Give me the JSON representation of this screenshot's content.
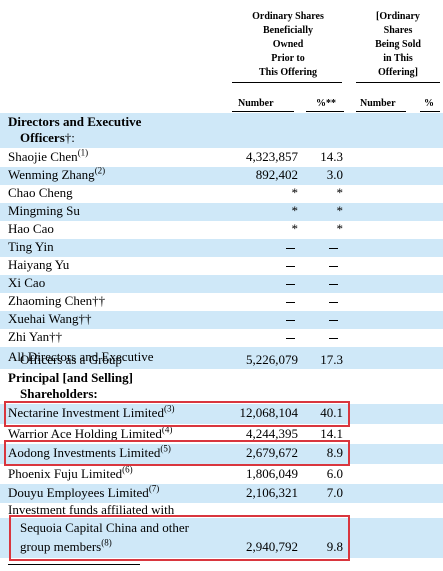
{
  "header": {
    "prior_lines": [
      "Ordinary Shares",
      "Beneficially",
      "Owned",
      "Prior to",
      "This Offering"
    ],
    "sold_lines": [
      "[Ordinary",
      "Shares",
      "Being Sold",
      "in This",
      "Offering]"
    ],
    "col_number": "Number",
    "col_pct": "%**",
    "col_number2": "Number",
    "col_pct2": "%"
  },
  "sections": {
    "directors_1": "Directors and Executive",
    "directors_2": "Officers",
    "directors_mark": "†:",
    "principal_1": "Principal [and Selling]",
    "principal_2": "Shareholders:"
  },
  "rows": [
    {
      "name": "Shaojie Chen",
      "fn": "(1)",
      "number": "4,323,857",
      "pct": "14.3"
    },
    {
      "name": "Wenming Zhang",
      "fn": "(2)",
      "number": "892,402",
      "pct": "3.0"
    },
    {
      "name": "Chao Cheng",
      "fn": "",
      "number": "*",
      "pct": "*"
    },
    {
      "name": "Mingming Su",
      "fn": "",
      "number": "*",
      "pct": "*"
    },
    {
      "name": "Hao Cao",
      "fn": "",
      "number": "*",
      "pct": "*"
    },
    {
      "name": "Ting Yin",
      "fn": "",
      "number": "",
      "pct": ""
    },
    {
      "name": "Haiyang Yu",
      "fn": "",
      "number": "",
      "pct": ""
    },
    {
      "name": "Xi Cao",
      "fn": "",
      "number": "",
      "pct": ""
    },
    {
      "name": "Zhaoming Chen††",
      "fn": "",
      "number": "",
      "pct": ""
    },
    {
      "name": "Xuehai Wang††",
      "fn": "",
      "number": "",
      "pct": ""
    },
    {
      "name": "Zhi Yan††",
      "fn": "",
      "number": "",
      "pct": ""
    }
  ],
  "group": {
    "line1": "All Directors and Executive",
    "line2": "Officers as a Group",
    "number": "5,226,079",
    "pct": "17.3"
  },
  "shareholders": [
    {
      "name": "Nectarine Investment Limited",
      "fn": "(3)",
      "number": "12,068,104",
      "pct": "40.1"
    },
    {
      "name": "Warrior Ace Holding Limited",
      "fn": "(4)",
      "number": "4,244,395",
      "pct": "14.1"
    },
    {
      "name": "Aodong Investments Limited",
      "fn": "(5)",
      "number": "2,679,672",
      "pct": "8.9"
    },
    {
      "name": "Phoenix Fuju Limited",
      "fn": "(6)",
      "number": "1,806,049",
      "pct": "6.0"
    },
    {
      "name": "Douyu Employees Limited",
      "fn": "(7)",
      "number": "2,106,321",
      "pct": "7.0"
    }
  ],
  "sequoia": {
    "line1": "Investment funds affiliated with",
    "line2": "Sequoia Capital China and other",
    "line3": "group members",
    "fn": "(8)",
    "number": "2,940,792",
    "pct": "9.8"
  },
  "highlight_color": "#d9363e",
  "shade_color": "#cfe8f8"
}
